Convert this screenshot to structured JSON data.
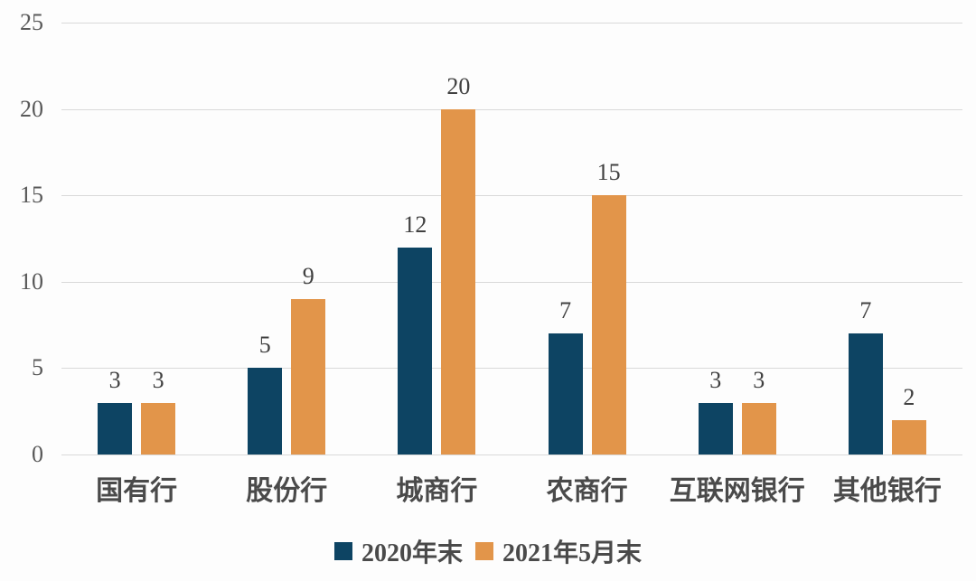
{
  "chart_data": {
    "type": "bar",
    "title": "",
    "xlabel": "",
    "ylabel": "",
    "ylim": [
      0,
      25
    ],
    "yticks": [
      0,
      5,
      10,
      15,
      20,
      25
    ],
    "grid": true,
    "legend_position": "bottom",
    "categories": [
      "国有行",
      "股份行",
      "城商行",
      "农商行",
      "互联网银行",
      "其他银行"
    ],
    "series": [
      {
        "name": "2020年末",
        "color": "#0d4463",
        "values": [
          3,
          5,
          12,
          7,
          3,
          7
        ]
      },
      {
        "name": "2021年5月末",
        "color": "#e2954a",
        "values": [
          3,
          9,
          20,
          15,
          3,
          2
        ]
      }
    ]
  }
}
